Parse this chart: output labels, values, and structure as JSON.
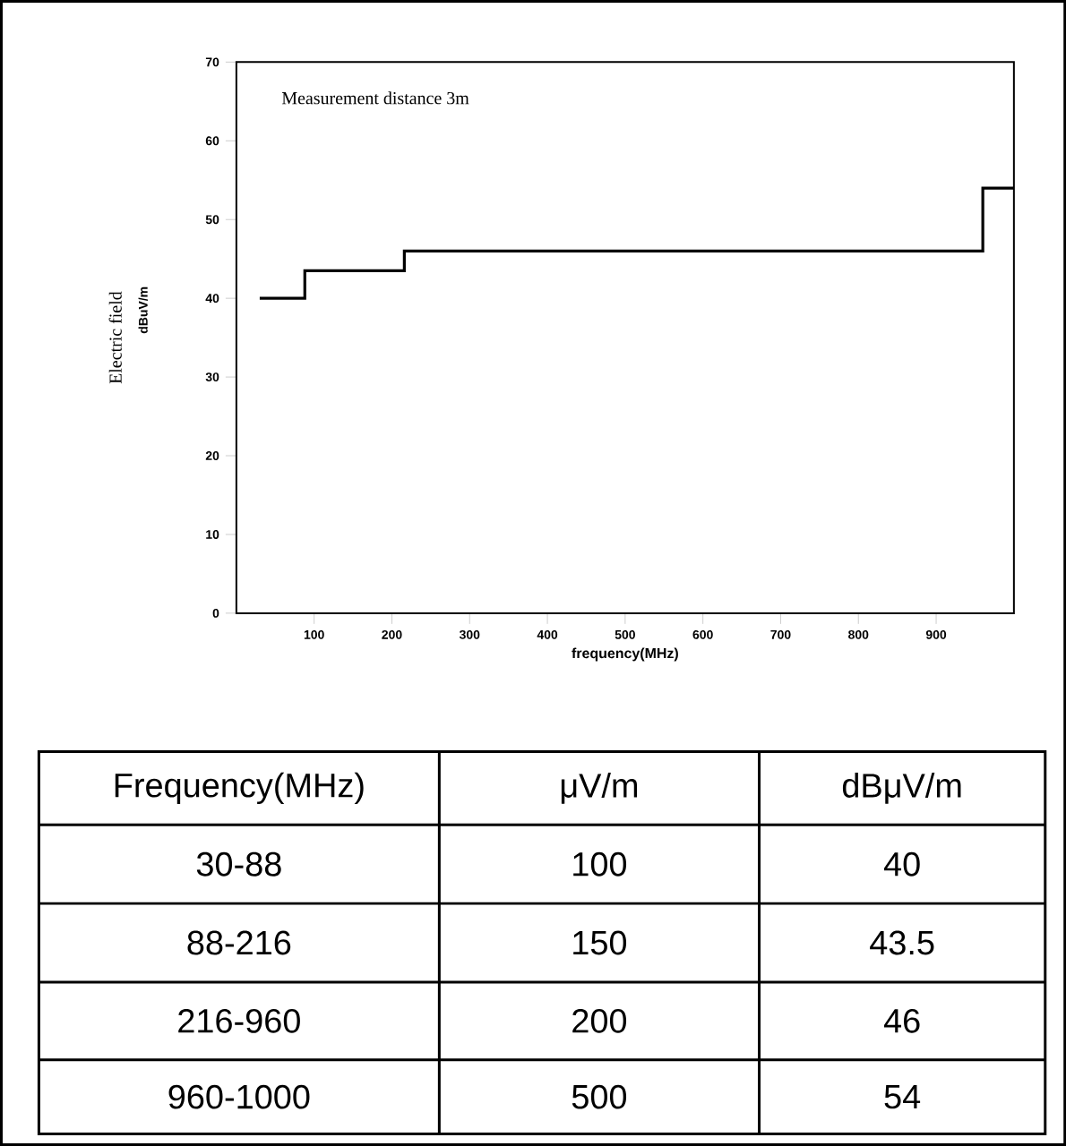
{
  "chart_data": {
    "type": "step",
    "xlabel": "frequency(MHz)",
    "ylabel": "Electric field",
    "x": [
      30,
      88,
      216,
      960,
      1000
    ],
    "values": [
      40,
      43.5,
      46,
      54,
      54
    ],
    "color": "#000000",
    "xlim": [
      0,
      1000
    ],
    "ylim": [
      0,
      70
    ],
    "xticks": [
      100,
      200,
      300,
      400,
      500,
      600,
      700,
      800,
      900
    ],
    "yticks": [
      0,
      10,
      20,
      30,
      40,
      50,
      60,
      70
    ],
    "annotations": [
      "Measurement distance 3m",
      "dBuV/m",
      "Frequency(MHz)",
      "μV/m",
      "dBμV/m",
      "30-88",
      "100",
      "40",
      "88-216",
      "150",
      "43.5",
      "216-960",
      "200",
      "46",
      "960-1000",
      "500",
      "54"
    ]
  }
}
